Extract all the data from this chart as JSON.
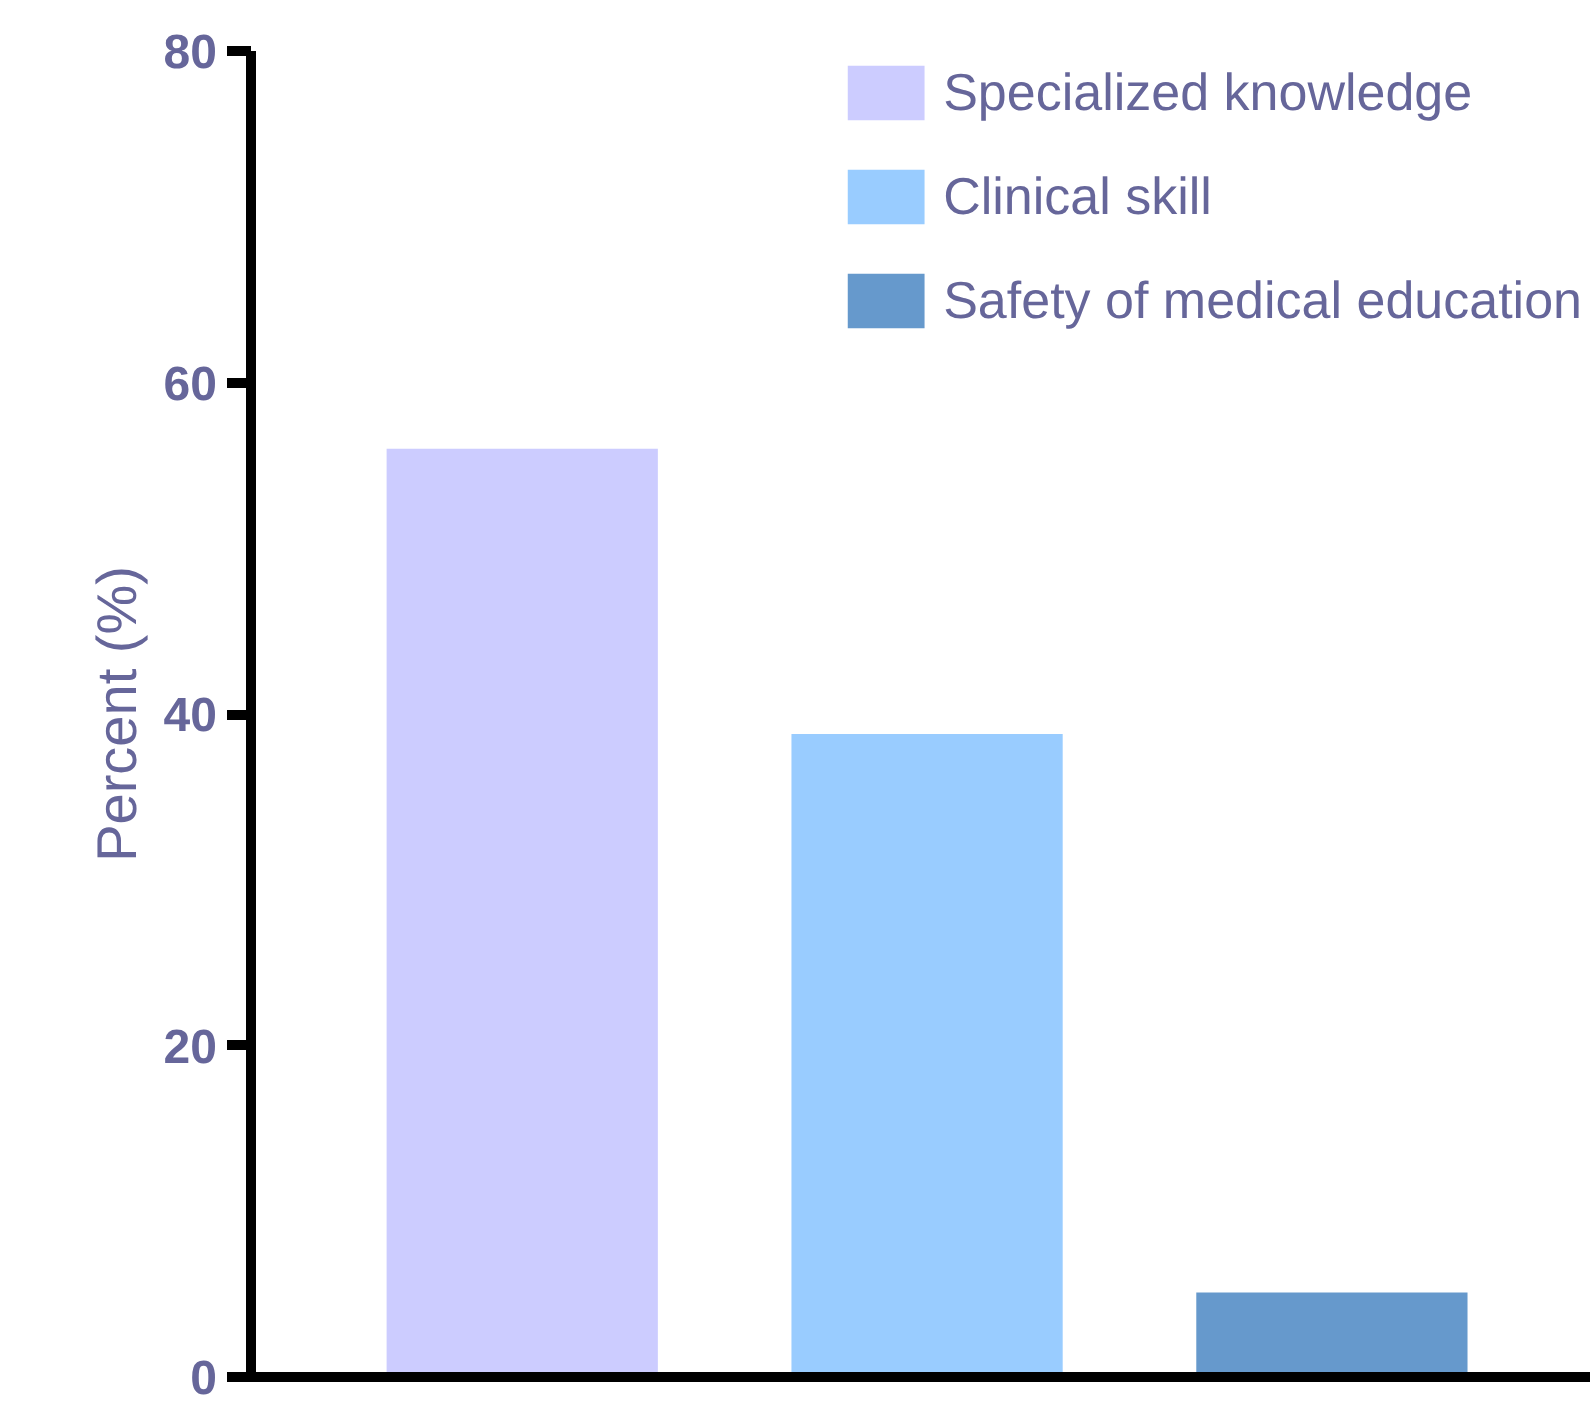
{
  "chart_data": {
    "type": "bar",
    "ylabel": "Percent (%)",
    "categories": [
      null,
      null,
      null
    ],
    "series": [
      {
        "name": "Specialized knowledge",
        "color": "#ccccff",
        "values": [
          56,
          null,
          null
        ]
      },
      {
        "name": "Clinical skill",
        "color": "#99ccff",
        "values": [
          null,
          38.8,
          null
        ]
      },
      {
        "name": "Safety of medical education",
        "color": "#6699cc",
        "values": [
          null,
          null,
          5.1
        ]
      }
    ],
    "ylim": [
      0,
      80
    ],
    "yticks": [
      0,
      20,
      40,
      60,
      80
    ],
    "legend": "top right",
    "grid": false
  }
}
